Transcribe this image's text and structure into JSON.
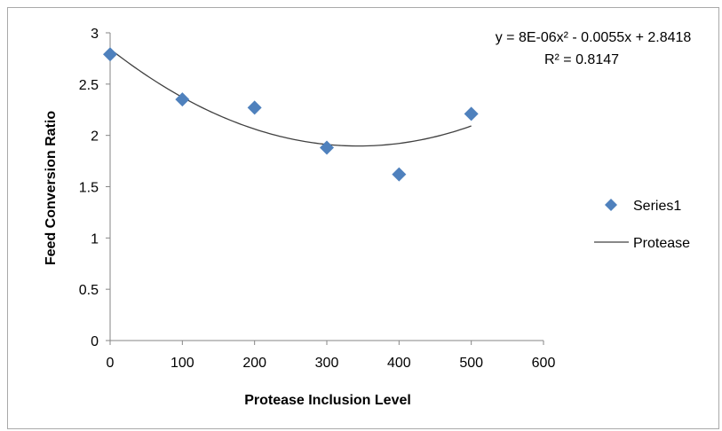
{
  "chart_data": {
    "type": "scatter",
    "title": "",
    "xlabel": "Protease Inclusion Level",
    "ylabel": "Feed Conversion Ratio",
    "xlim": [
      0,
      600
    ],
    "ylim": [
      0,
      3
    ],
    "x_ticks": [
      0,
      100,
      200,
      300,
      400,
      500,
      600
    ],
    "y_ticks": [
      0,
      0.5,
      1,
      1.5,
      2,
      2.5,
      3
    ],
    "grid": false,
    "legend_position": "right",
    "series": [
      {
        "name": "Series1",
        "marker": "diamond",
        "color": "#4f81bd",
        "x": [
          0,
          100,
          200,
          300,
          400,
          500
        ],
        "y": [
          2.79,
          2.35,
          2.27,
          1.88,
          1.62,
          2.21
        ]
      }
    ],
    "trendline": {
      "name": "Protease",
      "type": "polynomial",
      "color": "#404040",
      "coefficients": {
        "a": 8e-06,
        "b": -0.0055,
        "c": 2.8418
      },
      "x_range": [
        0,
        500
      ],
      "equation_text": "y = 8E-06x² - 0.0055x + 2.8418",
      "r2_text": "R² = 0.8147"
    }
  }
}
